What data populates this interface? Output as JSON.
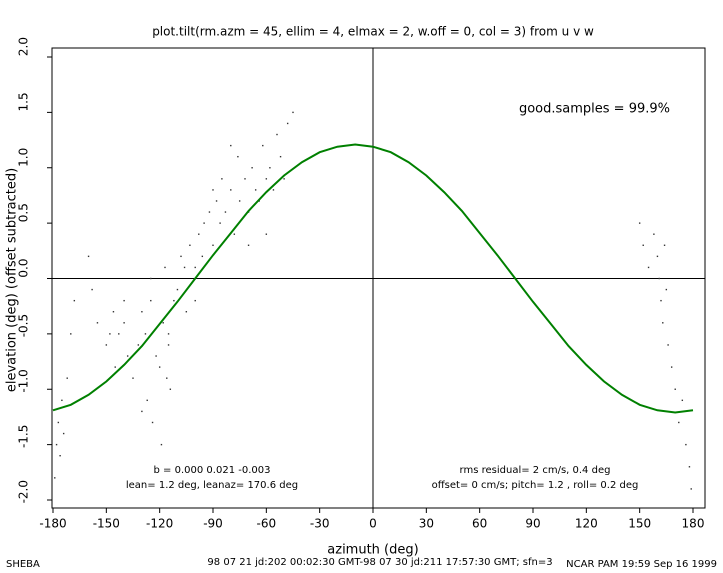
{
  "chart_data": {
    "type": "scatter",
    "title": "plot.tilt(rm.azm = 45, ellim = 4, elmax = 2, w.off = 0, col = 3) from u v w",
    "x_label": "azimuth (deg)",
    "y_label": "elevation (deg)  (offset subtracted)",
    "xlim": [
      -180,
      180
    ],
    "ylim": [
      -2,
      2
    ],
    "xticks": [
      -180,
      -150,
      -120,
      -90,
      -60,
      -30,
      0,
      30,
      60,
      90,
      120,
      150,
      180
    ],
    "yticks": [
      {
        "value": 2,
        "label": "2.0"
      },
      {
        "value": 1.5,
        "label": "1.5"
      },
      {
        "value": 1,
        "label": "1.0"
      },
      {
        "value": 0.5,
        "label": "0.5"
      },
      {
        "value": 0,
        "label": "0.0"
      },
      {
        "value": -0.5,
        "label": "-0.5"
      },
      {
        "value": -1,
        "label": "-1.0"
      },
      {
        "value": -1.5,
        "label": "-1.5"
      },
      {
        "value": -2,
        "label": "-2.0"
      }
    ],
    "points": {
      "color": "#333333",
      "x": [
        -179,
        -178,
        -177,
        -176,
        -175,
        -174,
        -172,
        -170,
        -168,
        -160,
        -158,
        -155,
        -150,
        -148,
        -146,
        -145,
        -143,
        -140,
        -138,
        -135,
        -132,
        -130,
        -128,
        -127,
        -125,
        -124,
        -122,
        -120,
        -119,
        -118,
        -117,
        -116,
        -115,
        -114,
        -112,
        -110,
        -108,
        -106,
        -105,
        -103,
        -100,
        -98,
        -96,
        -95,
        -92,
        -90,
        -88,
        -86,
        -85,
        -83,
        -80,
        -78,
        -76,
        -75,
        -72,
        -70,
        -68,
        -66,
        -64,
        -62,
        -60,
        -58,
        -56,
        -54,
        -52,
        -50,
        -48,
        -45,
        -140,
        -130,
        -125,
        -115,
        -100,
        -90,
        -80,
        -70,
        -60,
        150,
        152,
        155,
        158,
        160,
        161,
        162,
        163,
        164,
        165,
        166,
        168,
        170,
        172,
        174,
        176,
        178,
        179
      ],
      "y": [
        -1.8,
        -1.5,
        -1.3,
        -1.6,
        -1.1,
        -1.4,
        -0.9,
        -0.5,
        -0.2,
        0.2,
        -0.1,
        -0.4,
        -0.6,
        -0.5,
        -0.3,
        -0.8,
        -0.5,
        -0.4,
        -0.7,
        -0.9,
        -0.6,
        -0.3,
        -0.5,
        -1.1,
        -0.2,
        -1.3,
        -0.7,
        -0.8,
        -1.5,
        -0.4,
        0.1,
        -0.9,
        -0.6,
        -1.0,
        -0.2,
        -0.1,
        0.2,
        0.1,
        -0.3,
        0.3,
        0.1,
        0.4,
        0.2,
        0.5,
        0.6,
        0.3,
        0.7,
        0.5,
        0.9,
        0.6,
        0.8,
        0.4,
        1.1,
        0.7,
        0.9,
        0.6,
        1.0,
        0.8,
        0.7,
        1.2,
        0.9,
        1.0,
        0.8,
        1.3,
        1.1,
        0.9,
        1.4,
        1.5,
        -0.2,
        -1.2,
        0.0,
        -0.5,
        -0.2,
        0.8,
        1.2,
        0.3,
        0.4,
        0.5,
        0.3,
        0.1,
        0.4,
        0.2,
        0.0,
        -0.2,
        -0.4,
        0.3,
        -0.1,
        -0.6,
        -0.8,
        -1.0,
        -1.3,
        -1.1,
        -1.5,
        -1.7,
        -1.9
      ]
    },
    "fit": {
      "color": "#008000",
      "x": [
        -180,
        -170,
        -160,
        -150,
        -140,
        -130,
        -120,
        -110,
        -100,
        -90,
        -80,
        -70,
        -60,
        -50,
        -40,
        -30,
        -20,
        -10,
        0,
        10,
        20,
        30,
        40,
        50,
        60,
        70,
        80,
        90,
        100,
        110,
        120,
        130,
        140,
        150,
        160,
        170,
        180
      ],
      "values": [
        -1.19,
        -1.14,
        -1.05,
        -0.93,
        -0.78,
        -0.61,
        -0.41,
        -0.21,
        0,
        0.21,
        0.41,
        0.61,
        0.78,
        0.93,
        1.05,
        1.14,
        1.19,
        1.21,
        1.19,
        1.14,
        1.05,
        0.93,
        0.78,
        0.61,
        0.41,
        0.21,
        0,
        -0.21,
        -0.41,
        -0.61,
        -0.78,
        -0.93,
        -1.05,
        -1.14,
        -1.19,
        -1.21,
        -1.19
      ]
    },
    "annotations": [
      "good.samples = 99.9%",
      "b =  0.000  0.021 -0.003",
      "lean= 1.2 deg, leanaz= 170.6 deg",
      "rms residual= 2 cm/s, 0.4 deg",
      "offset= 0 cm/s; pitch= 1.2 , roll= 0.2 deg"
    ],
    "footer": [
      "SHEBA",
      "98 07 21 jd:202 00:02:30 GMT-98 07 30 jd:211 17:57:30 GMT; sfn=3",
      "NCAR PAM 19:59 Sep 16 1999"
    ]
  }
}
